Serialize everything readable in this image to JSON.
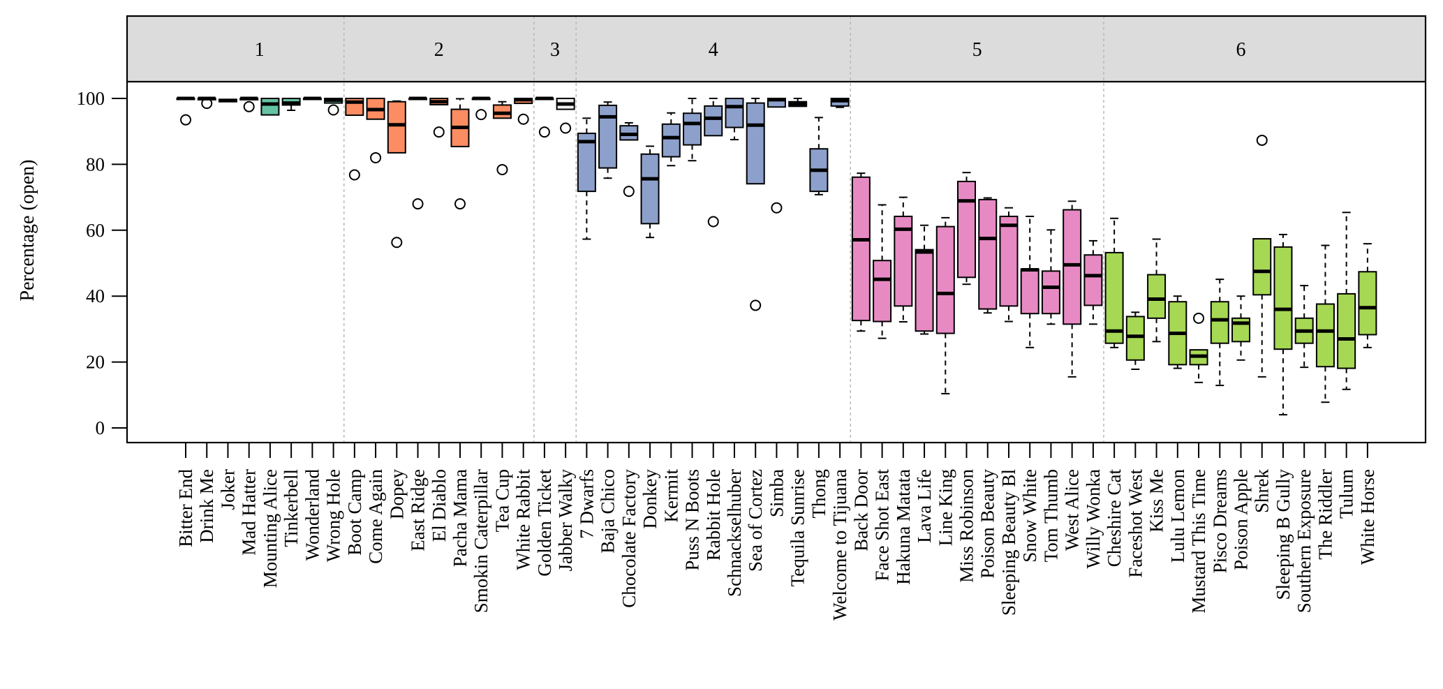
{
  "chart_data": {
    "type": "boxplot",
    "title": "",
    "xlabel": "",
    "ylabel": "Percentage (open)",
    "ylim": [
      -5,
      105
    ],
    "yticks": [
      0,
      20,
      40,
      60,
      80,
      100
    ],
    "grid": false,
    "legend": "none",
    "panel_label_position": "top",
    "groups": [
      {
        "label": "1",
        "color": "#66c2a5",
        "categories": [
          {
            "name": "Bitter End",
            "lower": 100,
            "q1": 100,
            "median": 100,
            "q3": 100,
            "upper": 100,
            "outliers": [
              93.5
            ]
          },
          {
            "name": "Drink Me",
            "lower": 99.6,
            "q1": 99.6,
            "median": 100,
            "q3": 100,
            "upper": 100,
            "outliers": [
              98.5
            ]
          },
          {
            "name": "Joker",
            "lower": 99,
            "q1": 99,
            "median": 99.4,
            "q3": 99.7,
            "upper": 99.7,
            "outliers": []
          },
          {
            "name": "Mad Hatter",
            "lower": 99.6,
            "q1": 99.6,
            "median": 100,
            "q3": 100,
            "upper": 100,
            "outliers": [
              97.5
            ]
          },
          {
            "name": "Mounting Alice",
            "lower": 95,
            "q1": 95,
            "median": 98.3,
            "q3": 100,
            "upper": 100,
            "outliers": []
          },
          {
            "name": "Tinkerbell",
            "lower": 96.4,
            "q1": 98,
            "median": 98.6,
            "q3": 100,
            "upper": 100,
            "outliers": []
          },
          {
            "name": "Wonderland",
            "lower": 100,
            "q1": 100,
            "median": 100,
            "q3": 100,
            "upper": 100,
            "outliers": []
          },
          {
            "name": "Wrong Hole",
            "lower": 98.6,
            "q1": 98.6,
            "median": 99.5,
            "q3": 100,
            "upper": 100,
            "outliers": [
              96.5
            ]
          }
        ]
      },
      {
        "label": "2",
        "color": "#fc8d62",
        "categories": [
          {
            "name": "Boot Camp",
            "lower": 94.9,
            "q1": 94.9,
            "median": 98.9,
            "q3": 100,
            "upper": 100,
            "outliers": [
              76.8
            ]
          },
          {
            "name": "Come Again",
            "lower": 93.7,
            "q1": 93.7,
            "median": 96.6,
            "q3": 100,
            "upper": 100,
            "outliers": [
              82
            ]
          },
          {
            "name": "Dopey",
            "lower": 83.5,
            "q1": 83.5,
            "median": 92,
            "q3": 99,
            "upper": 99.2,
            "outliers": [
              56.3
            ]
          },
          {
            "name": "East Ridge",
            "lower": 100,
            "q1": 100,
            "median": 100,
            "q3": 100,
            "upper": 100,
            "outliers": [
              68
            ]
          },
          {
            "name": "El Diablo",
            "lower": 98.1,
            "q1": 98.1,
            "median": 99,
            "q3": 100,
            "upper": 100,
            "outliers": [
              89.8
            ]
          },
          {
            "name": "Pacha Mama",
            "lower": 85.4,
            "q1": 85.4,
            "median": 91.2,
            "q3": 96.7,
            "upper": 99.9,
            "outliers": [
              68
            ]
          },
          {
            "name": "Smokin Caterpillar",
            "lower": 100,
            "q1": 100,
            "median": 100,
            "q3": 100,
            "upper": 100,
            "outliers": [
              95.1
            ]
          },
          {
            "name": "Tea Cup",
            "lower": 94,
            "q1": 94,
            "median": 95.5,
            "q3": 98,
            "upper": 99,
            "outliers": [
              78.4
            ]
          },
          {
            "name": "White Rabbit",
            "lower": 98.5,
            "q1": 98.5,
            "median": 99.6,
            "q3": 100,
            "upper": 100,
            "outliers": [
              93.7
            ]
          }
        ]
      },
      {
        "label": "3",
        "color": "#f2f2f2",
        "categories": [
          {
            "name": "Golden Ticket",
            "lower": 100,
            "q1": 100,
            "median": 100,
            "q3": 100,
            "upper": 100,
            "outliers": [
              89.8
            ]
          },
          {
            "name": "Jabber Walky",
            "lower": 96.7,
            "q1": 96.7,
            "median": 98.3,
            "q3": 100,
            "upper": 100,
            "outliers": [
              91
            ]
          }
        ]
      },
      {
        "label": "4",
        "color": "#8da0cb",
        "categories": [
          {
            "name": "7 Dwarfs",
            "lower": 57.3,
            "q1": 71.8,
            "median": 86.9,
            "q3": 89.4,
            "upper": 94,
            "outliers": []
          },
          {
            "name": "Baja Chico",
            "lower": 75.8,
            "q1": 78.9,
            "median": 94.4,
            "q3": 97.9,
            "upper": 98.9,
            "outliers": []
          },
          {
            "name": "Chocolate Factory",
            "lower": 87.4,
            "q1": 87.4,
            "median": 89.1,
            "q3": 91.7,
            "upper": 92.6,
            "outliers": [
              71.8
            ]
          },
          {
            "name": "Donkey",
            "lower": 57.8,
            "q1": 62,
            "median": 75.6,
            "q3": 83.1,
            "upper": 85.5,
            "outliers": []
          },
          {
            "name": "Kermit",
            "lower": 79.6,
            "q1": 82.3,
            "median": 88.1,
            "q3": 92.2,
            "upper": 95.6,
            "outliers": []
          },
          {
            "name": "Puss N Boots",
            "lower": 81.1,
            "q1": 85.9,
            "median": 92.4,
            "q3": 95.5,
            "upper": 100,
            "outliers": []
          },
          {
            "name": "Rabbit Hole",
            "lower": 88.7,
            "q1": 88.7,
            "median": 94,
            "q3": 97.7,
            "upper": 100,
            "outliers": [
              62.6
            ]
          },
          {
            "name": "Schnackselhuber",
            "lower": 87.5,
            "q1": 91.2,
            "median": 97.5,
            "q3": 100,
            "upper": 100,
            "outliers": []
          },
          {
            "name": "Sea of Cortez",
            "lower": 74.1,
            "q1": 74.1,
            "median": 91.9,
            "q3": 98.6,
            "upper": 100,
            "outliers": [
              37.2
            ]
          },
          {
            "name": "Simba",
            "lower": 97.4,
            "q1": 97.4,
            "median": 99.6,
            "q3": 100,
            "upper": 100,
            "outliers": [
              66.8
            ]
          },
          {
            "name": "Tequila Sunrise",
            "lower": 97.6,
            "q1": 97.6,
            "median": 98.3,
            "q3": 99,
            "upper": 100,
            "outliers": []
          },
          {
            "name": "Thong",
            "lower": 70.8,
            "q1": 71.8,
            "median": 78.2,
            "q3": 84.7,
            "upper": 94.2,
            "outliers": []
          },
          {
            "name": "Welcome to Tijuana",
            "lower": 97.3,
            "q1": 97.7,
            "median": 99.3,
            "q3": 100,
            "upper": 100,
            "outliers": []
          }
        ]
      },
      {
        "label": "5",
        "color": "#e78ac3",
        "categories": [
          {
            "name": "Back Door",
            "lower": 29.4,
            "q1": 32.6,
            "median": 57.1,
            "q3": 76.1,
            "upper": 77.3,
            "outliers": []
          },
          {
            "name": "Face Shot East",
            "lower": 27.2,
            "q1": 32.3,
            "median": 45.1,
            "q3": 50.8,
            "upper": 67.7,
            "outliers": []
          },
          {
            "name": "Hakuna Matata",
            "lower": 32.2,
            "q1": 37,
            "median": 60.3,
            "q3": 64.2,
            "upper": 70,
            "outliers": []
          },
          {
            "name": "Lava Life",
            "lower": 28.5,
            "q1": 29.4,
            "median": 53.4,
            "q3": 54.1,
            "upper": 61.5,
            "outliers": []
          },
          {
            "name": "Line King",
            "lower": 10.4,
            "q1": 28.7,
            "median": 40.8,
            "q3": 61.1,
            "upper": 63.8,
            "outliers": []
          },
          {
            "name": "Miss Robinson",
            "lower": 43.6,
            "q1": 45.7,
            "median": 68.9,
            "q3": 74.8,
            "upper": 77.5,
            "outliers": []
          },
          {
            "name": "Poison Beauty",
            "lower": 34.9,
            "q1": 36.1,
            "median": 57.5,
            "q3": 69.3,
            "upper": 69.8,
            "outliers": []
          },
          {
            "name": "Sleeping Beauty Bl",
            "lower": 32.3,
            "q1": 37,
            "median": 61.5,
            "q3": 64.2,
            "upper": 66.8,
            "outliers": []
          },
          {
            "name": "Snow White",
            "lower": 24.4,
            "q1": 34.7,
            "median": 48,
            "q3": 48.2,
            "upper": 64.2,
            "outliers": []
          },
          {
            "name": "Tom Thumb",
            "lower": 31.5,
            "q1": 34.7,
            "median": 42.7,
            "q3": 47.6,
            "upper": 60.1,
            "outliers": []
          },
          {
            "name": "West Alice",
            "lower": 15.5,
            "q1": 31.5,
            "median": 49.5,
            "q3": 66.2,
            "upper": 68.8,
            "outliers": []
          },
          {
            "name": "Willy Wonka",
            "lower": 31.5,
            "q1": 37.2,
            "median": 46.2,
            "q3": 52.5,
            "upper": 56.8,
            "outliers": []
          }
        ]
      },
      {
        "label": "6",
        "color": "#a6d854",
        "categories": [
          {
            "name": "Cheshire Cat",
            "lower": 24.4,
            "q1": 25.7,
            "median": 29.4,
            "q3": 53.2,
            "upper": 63.6,
            "outliers": []
          },
          {
            "name": "Faceshot West",
            "lower": 17.8,
            "q1": 20.6,
            "median": 27.8,
            "q3": 33.8,
            "upper": 35.1,
            "outliers": []
          },
          {
            "name": "Kiss Me",
            "lower": 26.2,
            "q1": 33.3,
            "median": 39.1,
            "q3": 46.5,
            "upper": 57.3,
            "outliers": []
          },
          {
            "name": "Lulu Lemon",
            "lower": 18.1,
            "q1": 19.2,
            "median": 28.7,
            "q3": 38.3,
            "upper": 40,
            "outliers": []
          },
          {
            "name": "Mustard This Time",
            "lower": 13.8,
            "q1": 19.2,
            "median": 21.8,
            "q3": 23.7,
            "upper": 23.7,
            "outliers": [
              33.3
            ]
          },
          {
            "name": "Pisco Dreams",
            "lower": 12.9,
            "q1": 25.7,
            "median": 32.8,
            "q3": 38.3,
            "upper": 45.1,
            "outliers": []
          },
          {
            "name": "Poison Apple",
            "lower": 20.6,
            "q1": 26.2,
            "median": 31.8,
            "q3": 33.3,
            "upper": 40,
            "outliers": []
          },
          {
            "name": "Shrek",
            "lower": 15.5,
            "q1": 40.4,
            "median": 47.5,
            "q3": 57.4,
            "upper": 57.4,
            "outliers": [
              87.3
            ]
          },
          {
            "name": "Sleeping B Gully",
            "lower": 4,
            "q1": 23.9,
            "median": 36,
            "q3": 54.9,
            "upper": 58.7,
            "outliers": []
          },
          {
            "name": "Southern Exposure",
            "lower": 18.4,
            "q1": 25.7,
            "median": 29.4,
            "q3": 33.3,
            "upper": 43.2,
            "outliers": []
          },
          {
            "name": "The Riddler",
            "lower": 7.8,
            "q1": 18.6,
            "median": 29.4,
            "q3": 37.6,
            "upper": 55.4,
            "outliers": []
          },
          {
            "name": "Tulum",
            "lower": 11.7,
            "q1": 18.1,
            "median": 27,
            "q3": 40.7,
            "upper": 65.4,
            "outliers": []
          },
          {
            "name": "White Horse",
            "lower": 24.4,
            "q1": 28.3,
            "median": 36.5,
            "q3": 47.4,
            "upper": 55.9,
            "outliers": []
          }
        ]
      }
    ]
  }
}
